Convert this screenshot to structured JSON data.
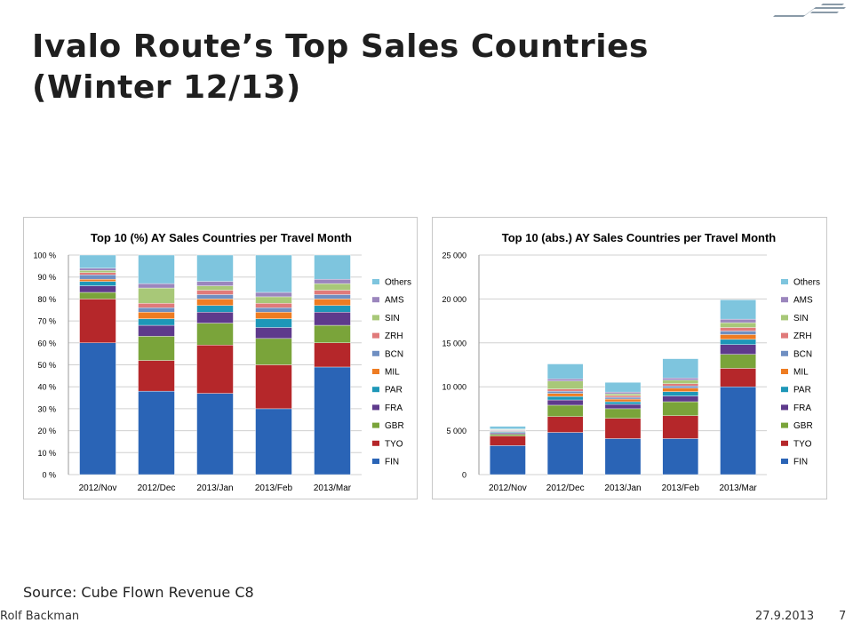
{
  "slide": {
    "title_line1": "Ivalo Route’s Top Sales Countries",
    "title_line2": "(Winter 12/13)",
    "source": "Source: Cube Flown Revenue C8",
    "author": "Rolf Backman",
    "date": "27.9.2013",
    "page": "7"
  },
  "logo": {
    "icon": "airline-logo-icon",
    "color": "#8a9aa8"
  },
  "colors": {
    "FIN": "#2a64b6",
    "TYO": "#b5272a",
    "GBR": "#7aa43a",
    "FRA": "#5e3a8c",
    "PAR": "#1e97b8",
    "MIL": "#ee7c22",
    "BCN": "#6f8fc2",
    "ZRH": "#e07a7a",
    "SIN": "#a8c878",
    "AMS": "#9b86bd",
    "Others": "#7ec5de"
  },
  "chart_data": [
    {
      "type": "bar",
      "stacked": true,
      "title": "Top 10 (%) AY Sales Countries per Travel Month",
      "categories": [
        "2012/Nov",
        "2012/Dec",
        "2013/Jan",
        "2013/Feb",
        "2013/Mar"
      ],
      "yticks": [
        0,
        10,
        20,
        30,
        40,
        50,
        60,
        70,
        80,
        90,
        100
      ],
      "ytick_labels": [
        "0 %",
        "10 %",
        "20 %",
        "30 %",
        "40 %",
        "50 %",
        "60 %",
        "70 %",
        "80 %",
        "90 %",
        "100 %"
      ],
      "ylim": [
        0,
        100
      ],
      "legend_position": "right",
      "series": [
        {
          "name": "FIN",
          "values": [
            60,
            38,
            37,
            30,
            49
          ]
        },
        {
          "name": "TYO",
          "values": [
            20,
            14,
            22,
            20,
            11
          ]
        },
        {
          "name": "GBR",
          "values": [
            3,
            11,
            10,
            12,
            8
          ]
        },
        {
          "name": "FRA",
          "values": [
            3,
            5,
            5,
            5,
            6
          ]
        },
        {
          "name": "PAR",
          "values": [
            2,
            3,
            3,
            4,
            3
          ]
        },
        {
          "name": "MIL",
          "values": [
            1,
            3,
            3,
            3,
            3
          ]
        },
        {
          "name": "BCN",
          "values": [
            2,
            2,
            2,
            2,
            2
          ]
        },
        {
          "name": "ZRH",
          "values": [
            1,
            2,
            2,
            2,
            2
          ]
        },
        {
          "name": "SIN",
          "values": [
            1,
            7,
            2,
            3,
            3
          ]
        },
        {
          "name": "AMS",
          "values": [
            1,
            2,
            2,
            2,
            2
          ]
        },
        {
          "name": "Others",
          "values": [
            6,
            13,
            12,
            17,
            11
          ]
        }
      ]
    },
    {
      "type": "bar",
      "stacked": true,
      "title": "Top 10 (abs.) AY Sales Countries per Travel Month",
      "categories": [
        "2012/Nov",
        "2012/Dec",
        "2013/Jan",
        "2013/Feb",
        "2013/Mar"
      ],
      "yticks": [
        0,
        5000,
        10000,
        15000,
        20000,
        25000
      ],
      "ytick_labels": [
        "0",
        "5 000",
        "10 000",
        "15 000",
        "20 000",
        "25 000"
      ],
      "ylim": [
        0,
        25000
      ],
      "legend_position": "right",
      "series": [
        {
          "name": "FIN",
          "values": [
            3300,
            4800,
            4100,
            4100,
            10000
          ]
        },
        {
          "name": "TYO",
          "values": [
            1100,
            1800,
            2300,
            2600,
            2100
          ]
        },
        {
          "name": "GBR",
          "values": [
            200,
            1300,
            1100,
            1600,
            1600
          ]
        },
        {
          "name": "FRA",
          "values": [
            150,
            600,
            500,
            650,
            1100
          ]
        },
        {
          "name": "PAR",
          "values": [
            100,
            400,
            300,
            500,
            600
          ]
        },
        {
          "name": "MIL",
          "values": [
            60,
            350,
            300,
            400,
            550
          ]
        },
        {
          "name": "BCN",
          "values": [
            100,
            250,
            200,
            250,
            400
          ]
        },
        {
          "name": "ZRH",
          "values": [
            60,
            250,
            200,
            250,
            400
          ]
        },
        {
          "name": "SIN",
          "values": [
            60,
            900,
            200,
            400,
            550
          ]
        },
        {
          "name": "AMS",
          "values": [
            60,
            250,
            200,
            250,
            400
          ]
        },
        {
          "name": "Others",
          "values": [
            310,
            1700,
            1100,
            2200,
            2200
          ]
        }
      ]
    }
  ]
}
